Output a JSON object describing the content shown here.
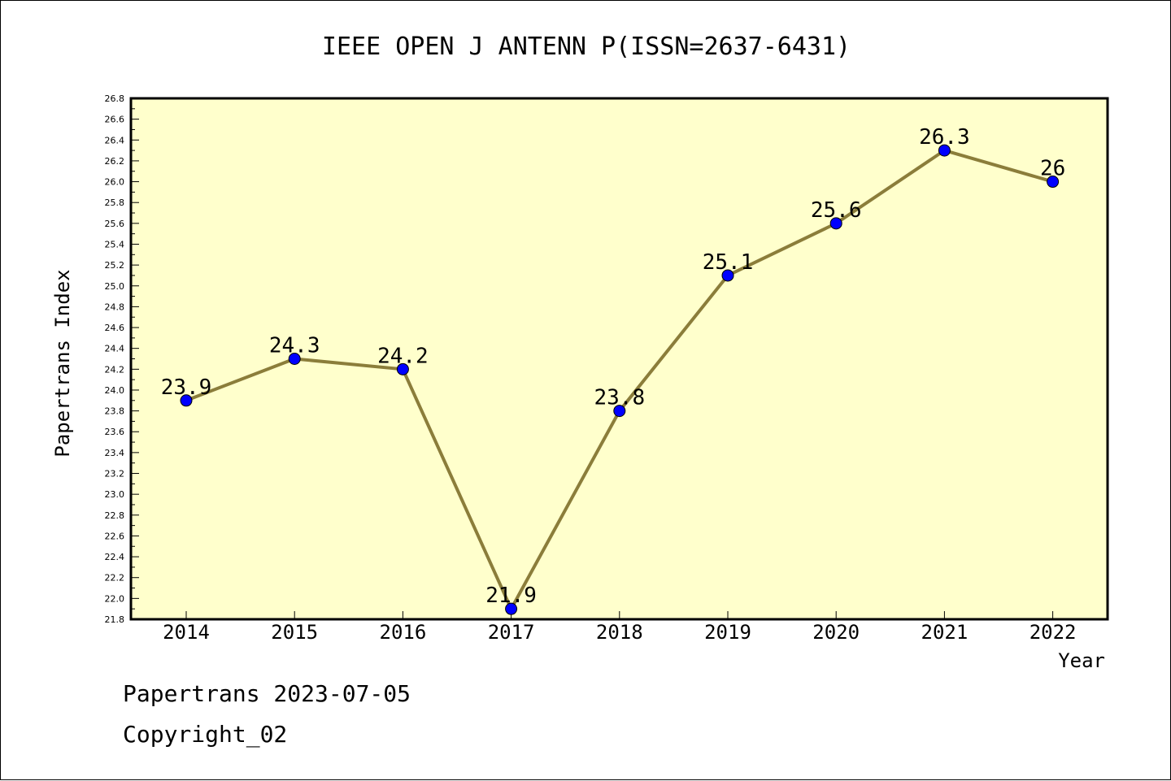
{
  "footer": {
    "line1": "Papertrans 2023-07-05",
    "line2": "Copyright_02"
  },
  "colors": {
    "plot_background": "#ffffcc",
    "line": "#8b7d3a",
    "marker": "#0000ff",
    "axis": "#000000"
  },
  "chart_data": {
    "type": "line",
    "title": "IEEE OPEN J ANTENN P(ISSN=2637-6431)",
    "xlabel": "Year",
    "ylabel": "Papertrans Index",
    "categories": [
      "2014",
      "2015",
      "2016",
      "2017",
      "2018",
      "2019",
      "2020",
      "2021",
      "2022"
    ],
    "series": [
      {
        "values": [
          23.9,
          24.3,
          24.2,
          21.9,
          23.8,
          25.1,
          25.6,
          26.3,
          26
        ],
        "data_labels": [
          "23.9",
          "24.3",
          "24.2",
          "21.9",
          "23.8",
          "25.1",
          "25.6",
          "26.3",
          "26"
        ]
      }
    ],
    "ylim": [
      21.8,
      26.8
    ],
    "yticks": [
      "21.8",
      "22.0",
      "22.2",
      "22.4",
      "22.6",
      "22.8",
      "23.0",
      "23.2",
      "23.4",
      "23.6",
      "23.8",
      "24.0",
      "24.2",
      "24.4",
      "24.6",
      "24.8",
      "25.0",
      "25.2",
      "25.4",
      "25.6",
      "25.8",
      "26.0",
      "26.2",
      "26.4",
      "26.6",
      "26.8"
    ],
    "grid": false,
    "legend": "none"
  }
}
